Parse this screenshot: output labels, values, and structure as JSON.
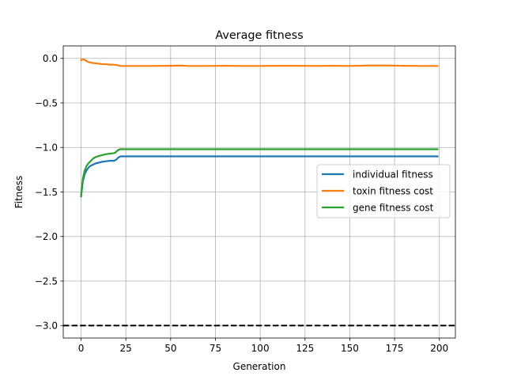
{
  "chart_data": {
    "type": "line",
    "title": "Average fitness",
    "xlabel": "Generation",
    "ylabel": "Fitness",
    "xlim": [
      -9.95,
      208.95
    ],
    "ylim": [
      -3.14,
      0.14
    ],
    "xticks": [
      0,
      25,
      50,
      75,
      100,
      125,
      150,
      175,
      200
    ],
    "yticks": [
      0.0,
      -0.5,
      -1.0,
      -1.5,
      -2.0,
      -2.5,
      -3.0
    ],
    "ytick_labels": [
      "0.0",
      "−0.5",
      "−1.0",
      "−1.5",
      "−2.0",
      "−2.5",
      "−3.0"
    ],
    "grid": true,
    "legend_position": "center-right",
    "colors": {
      "individual fitness": "#1f77b4",
      "toxin fitness cost": "#ff7f0e",
      "gene fitness cost": "#2ca02c",
      "reference": "#000000"
    },
    "series": [
      {
        "name": "individual fitness",
        "x": [
          0,
          1,
          2,
          3,
          4,
          5,
          6,
          7,
          8,
          10,
          12,
          14,
          16,
          18,
          19,
          20,
          21,
          22,
          23,
          25,
          30,
          40,
          50,
          60,
          70,
          80,
          90,
          100,
          110,
          120,
          130,
          140,
          150,
          160,
          170,
          180,
          190,
          199
        ],
        "y": [
          -1.55,
          -1.38,
          -1.3,
          -1.26,
          -1.23,
          -1.21,
          -1.2,
          -1.19,
          -1.18,
          -1.17,
          -1.16,
          -1.155,
          -1.15,
          -1.15,
          -1.145,
          -1.13,
          -1.11,
          -1.1,
          -1.1,
          -1.1,
          -1.1,
          -1.1,
          -1.1,
          -1.1,
          -1.1,
          -1.1,
          -1.1,
          -1.1,
          -1.1,
          -1.1,
          -1.1,
          -1.1,
          -1.1,
          -1.1,
          -1.1,
          -1.1,
          -1.1,
          -1.1
        ]
      },
      {
        "name": "toxin fitness cost",
        "x": [
          0,
          1,
          2,
          3,
          4,
          5,
          6,
          8,
          10,
          12,
          14,
          16,
          18,
          20,
          22,
          25,
          30,
          40,
          50,
          55,
          60,
          70,
          80,
          90,
          100,
          110,
          120,
          130,
          140,
          150,
          160,
          170,
          180,
          190,
          199
        ],
        "y": [
          -0.02,
          -0.01,
          -0.015,
          -0.03,
          -0.04,
          -0.045,
          -0.05,
          -0.055,
          -0.06,
          -0.065,
          -0.065,
          -0.07,
          -0.07,
          -0.075,
          -0.085,
          -0.085,
          -0.085,
          -0.085,
          -0.083,
          -0.08,
          -0.085,
          -0.085,
          -0.083,
          -0.085,
          -0.085,
          -0.083,
          -0.083,
          -0.085,
          -0.083,
          -0.085,
          -0.08,
          -0.08,
          -0.083,
          -0.085,
          -0.085
        ]
      },
      {
        "name": "gene fitness cost",
        "x": [
          0,
          1,
          2,
          3,
          4,
          5,
          6,
          7,
          8,
          10,
          12,
          14,
          16,
          18,
          19,
          20,
          21,
          22,
          23,
          25,
          30,
          40,
          50,
          60,
          70,
          80,
          90,
          100,
          110,
          120,
          130,
          140,
          150,
          160,
          170,
          180,
          190,
          199
        ],
        "y": [
          -1.54,
          -1.35,
          -1.26,
          -1.21,
          -1.18,
          -1.16,
          -1.14,
          -1.12,
          -1.11,
          -1.095,
          -1.085,
          -1.075,
          -1.07,
          -1.065,
          -1.06,
          -1.04,
          -1.025,
          -1.02,
          -1.02,
          -1.02,
          -1.02,
          -1.02,
          -1.02,
          -1.02,
          -1.02,
          -1.02,
          -1.02,
          -1.02,
          -1.02,
          -1.02,
          -1.02,
          -1.02,
          -1.02,
          -1.02,
          -1.02,
          -1.02,
          -1.02,
          -1.02
        ]
      }
    ],
    "reference_line": {
      "y": -3.0,
      "style": "dashed",
      "color": "#000000"
    }
  }
}
